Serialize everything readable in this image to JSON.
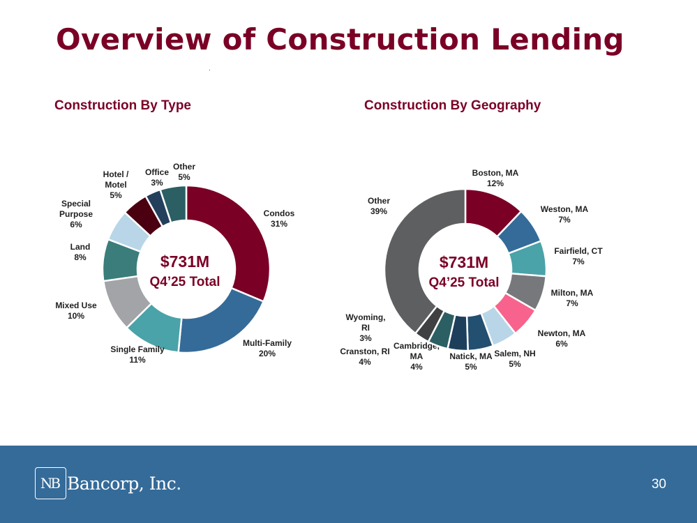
{
  "title": "Overview of Construction Lending",
  "footer": {
    "logo_mark": "NB",
    "company": "Bancorp, Inc.",
    "page_number": "30"
  },
  "chart_data": [
    {
      "type": "pie",
      "title": "Construction By Type",
      "center_line1": "$731M",
      "center_line2": "Q4’25 Total",
      "slices": [
        {
          "name": "Condos",
          "value": 31,
          "label": "31%",
          "color": "#7a0026"
        },
        {
          "name": "Multi-Family",
          "value": 20,
          "label": "20%",
          "color": "#356b99"
        },
        {
          "name": "Single Family",
          "value": 11,
          "label": "11%",
          "color": "#4aa3a8"
        },
        {
          "name": "Mixed Use",
          "value": 10,
          "label": "10%",
          "color": "#a2a4a7"
        },
        {
          "name": "Land",
          "value": 8,
          "label": "8%",
          "color": "#3a7d7a"
        },
        {
          "name": "Special Purpose",
          "value": 6,
          "label": "6%",
          "color": "#b8d6e8"
        },
        {
          "name": "Hotel / Motel",
          "value": 5,
          "label": "5%",
          "color": "#4a0010"
        },
        {
          "name": "Office",
          "value": 3,
          "label": "3%",
          "color": "#233f5c"
        },
        {
          "name": "Other",
          "value": 5,
          "label": "5%",
          "color": "#2c5f63"
        }
      ]
    },
    {
      "type": "pie",
      "title": "Construction By Geography",
      "center_line1": "$731M",
      "center_line2": "Q4’25 Total",
      "slices": [
        {
          "name": "Boston, MA",
          "value": 12,
          "label": "12%",
          "color": "#7a0026"
        },
        {
          "name": "Weston, MA",
          "value": 7,
          "label": "7%",
          "color": "#356b99"
        },
        {
          "name": "Fairfield, CT",
          "value": 7,
          "label": "7%",
          "color": "#4aa3a8"
        },
        {
          "name": "Milton, MA",
          "value": 7,
          "label": "7%",
          "color": "#76787b"
        },
        {
          "name": "Newton, MA",
          "value": 6,
          "label": "6%",
          "color": "#f7638c"
        },
        {
          "name": "Salem, NH",
          "value": 5,
          "label": "5%",
          "color": "#b8d6e8"
        },
        {
          "name": "Natick, MA",
          "value": 5,
          "label": "5%",
          "color": "#234f70"
        },
        {
          "name": "Cambridge, MA",
          "value": 4,
          "label": "4%",
          "color": "#1d3f5c"
        },
        {
          "name": "Cranston, RI",
          "value": 4,
          "label": "4%",
          "color": "#2c5f63"
        },
        {
          "name": "Wyoming, RI",
          "value": 3,
          "label": "3%",
          "color": "#3f4042"
        },
        {
          "name": "Other",
          "value": 39,
          "label": "39%",
          "color": "#5e5f61"
        }
      ]
    }
  ]
}
